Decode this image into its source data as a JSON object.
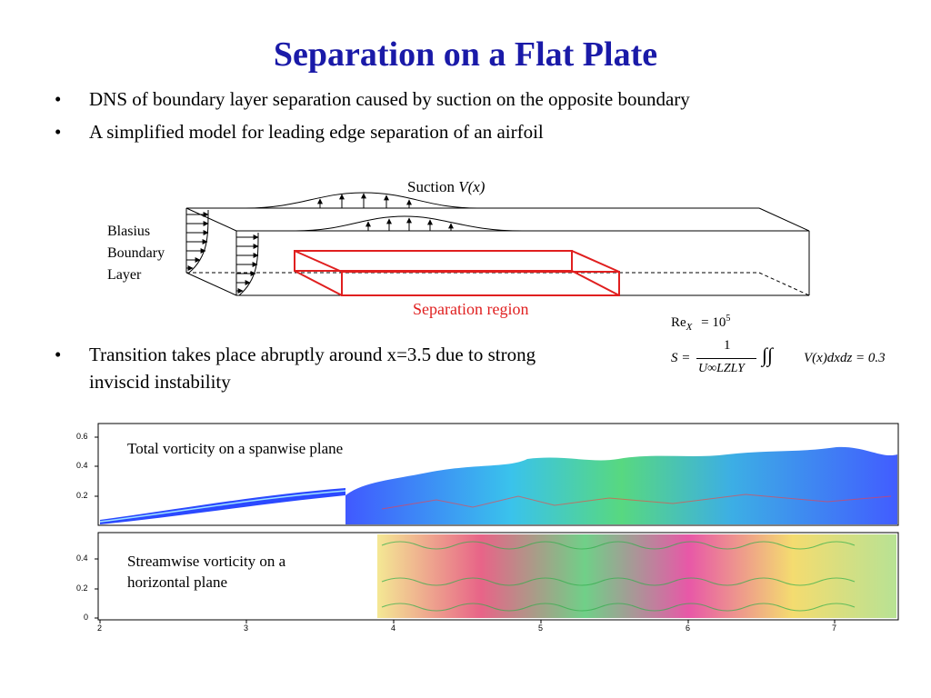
{
  "title": "Separation on a Flat Plate",
  "bullets": [
    "DNS of boundary layer separation caused by suction on the opposite boundary",
    "A simplified model for leading edge separation of an airfoil"
  ],
  "diagram": {
    "suction_label": "Suction ",
    "suction_var": "V(x)",
    "blasius_lines": [
      "Blasius",
      "Boundary",
      "Layer"
    ],
    "separation_label": "Separation region",
    "separation_color": "#e01f1f"
  },
  "formulas": {
    "re_lhs": "Re",
    "re_sub": "X",
    "re_rhs": "= 10",
    "re_exp": "5",
    "s_lhs": "S =",
    "s_num": "1",
    "s_den": "U∞LZLY",
    "s_rhs": "V(x)dxdz = 0.3"
  },
  "bullet3": {
    "line1": "Transition takes place abruptly around x=3.5 due to strong",
    "line2": "inviscid instability"
  },
  "plots": {
    "top_label": "Total vorticity on a spanwise plane",
    "bottom_label_1": "Streamwise vorticity on a",
    "bottom_label_2": "horizontal plane",
    "top_yticks": [
      "0.6",
      "0.4",
      "0.2"
    ],
    "bottom_yticks": [
      "0.4",
      "0.2",
      "0"
    ],
    "xticks": [
      "2",
      "3",
      "4",
      "5",
      "6",
      "7"
    ]
  },
  "colors": {
    "title": "#1a1aa8",
    "separation": "#e01f1f"
  }
}
